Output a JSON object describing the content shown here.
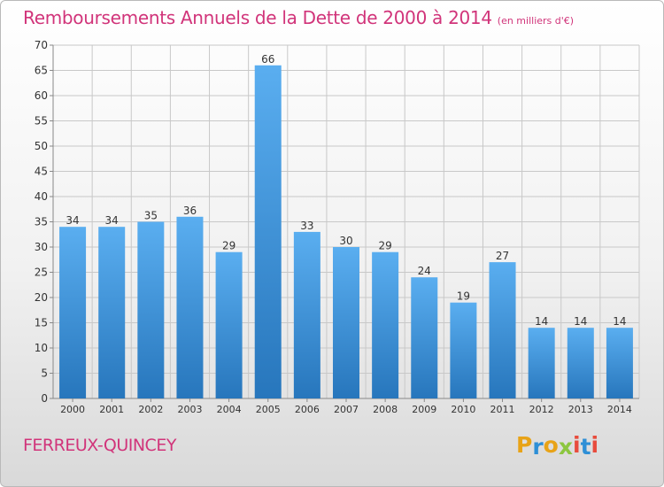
{
  "title": "Remboursements Annuels de la Dette de 2000 à 2014",
  "subtitle": "(en milliers d'€)",
  "commune": "FERREUX-QUINCEY",
  "logo": {
    "text": "Proxiti",
    "letters": [
      {
        "ch": "P",
        "color": "#e8a317"
      },
      {
        "ch": "r",
        "color": "#2e8fd6"
      },
      {
        "ch": "o",
        "color": "#e8a317"
      },
      {
        "ch": "x",
        "color": "#8cc63f"
      },
      {
        "ch": "i",
        "color": "#e84c3d"
      },
      {
        "ch": "t",
        "color": "#2e8fd6"
      },
      {
        "ch": "i",
        "color": "#e84c3d"
      }
    ]
  },
  "colors": {
    "accent": "#d1347a",
    "bar_top": "#5aaef0",
    "bar_bottom": "#2776bc",
    "grid": "#c8c8c8",
    "axis_text": "#333333"
  },
  "chart_data": {
    "type": "bar",
    "categories": [
      "2000",
      "2001",
      "2002",
      "2003",
      "2004",
      "2005",
      "2006",
      "2007",
      "2008",
      "2009",
      "2010",
      "2011",
      "2012",
      "2013",
      "2014"
    ],
    "values": [
      34,
      34,
      35,
      36,
      29,
      66,
      33,
      30,
      29,
      24,
      19,
      27,
      14,
      14,
      14
    ],
    "ylim": [
      0,
      70
    ],
    "yticks": [
      0,
      5,
      10,
      15,
      20,
      25,
      30,
      35,
      40,
      45,
      50,
      55,
      60,
      65,
      70
    ],
    "grid": true,
    "data_labels": true
  }
}
